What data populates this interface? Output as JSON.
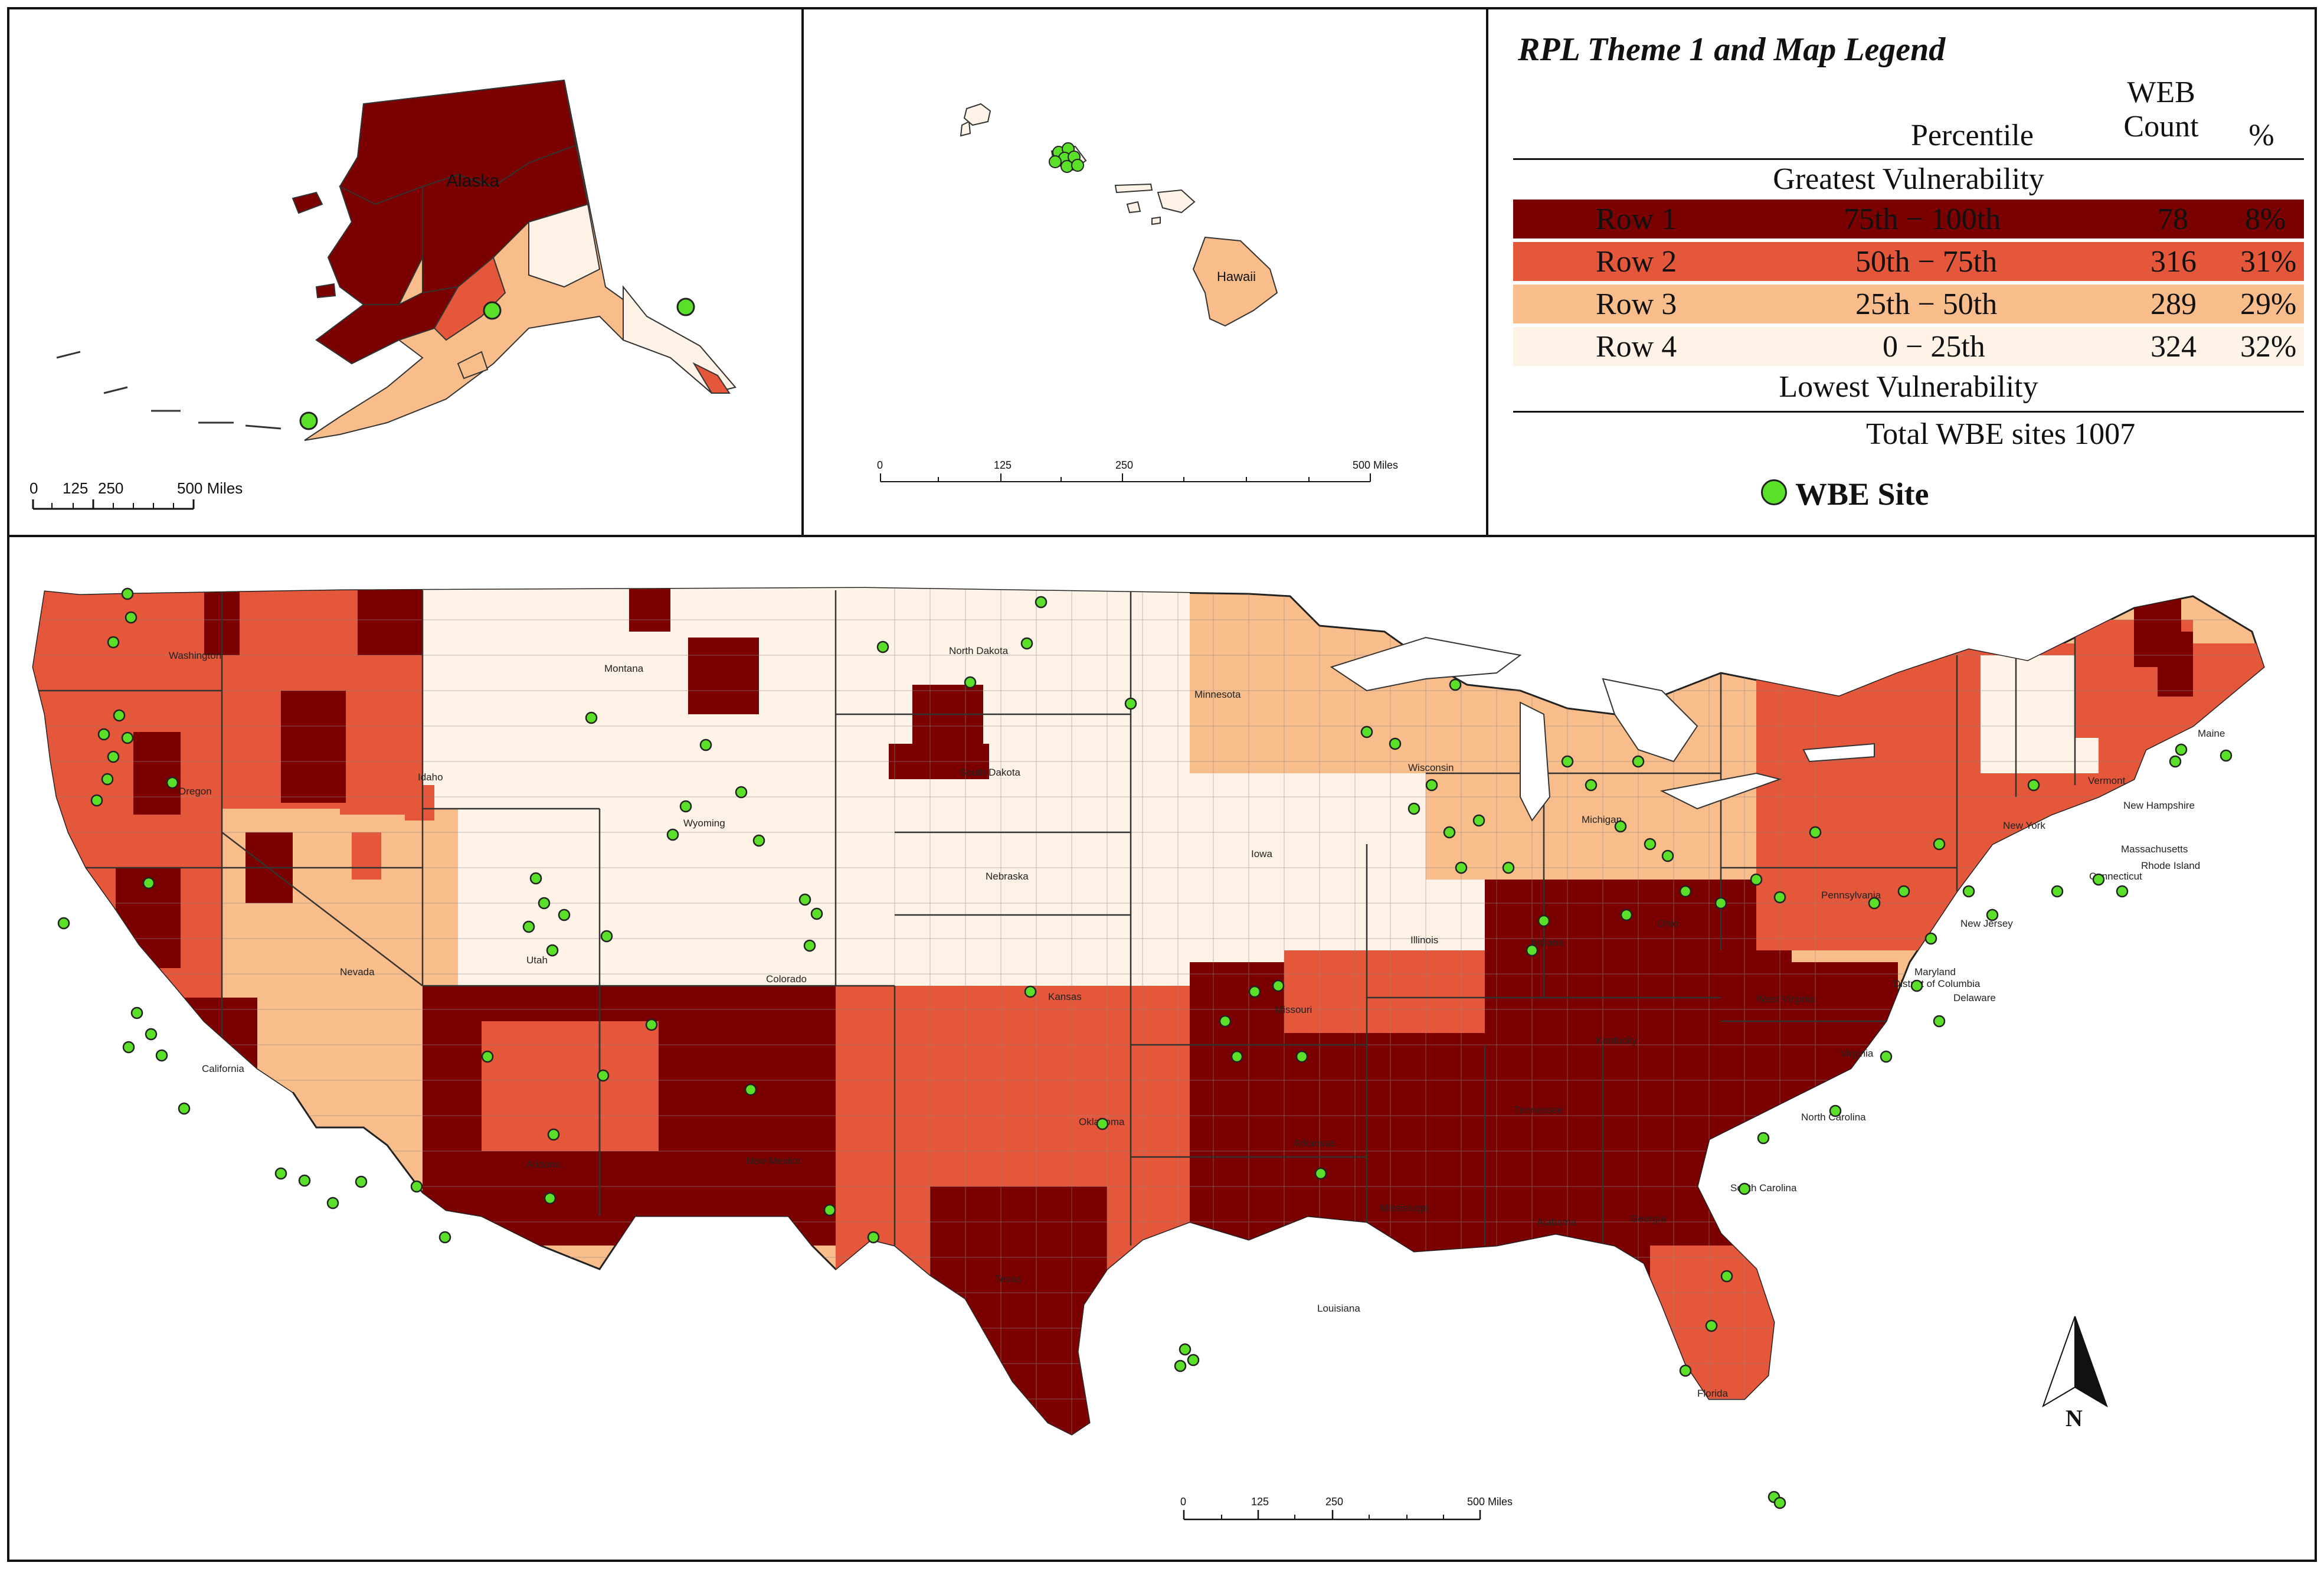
{
  "alaska_inset": {
    "label": "Alaska",
    "scale": {
      "ticks": [
        "0",
        "125",
        "250"
      ],
      "end": "500 Miles"
    }
  },
  "hawaii_inset": {
    "label": "Hawaii",
    "scale": {
      "ticks": [
        "0",
        "125",
        "250"
      ],
      "end": "500 Miles"
    }
  },
  "legend": {
    "title": "RPL Theme 1 and Map Legend",
    "col_percentile": "Percentile",
    "col_count_line1": "WEB",
    "col_count_line2": "Count",
    "col_pct": "%",
    "top_label": "Greatest Vulnerability",
    "bottom_label": "Lowest Vulnerability",
    "rows": [
      {
        "name": "Row 1",
        "range": "75th − 100th",
        "count": "78",
        "pct": "8%",
        "color": "#7b0000"
      },
      {
        "name": "Row 2",
        "range": "50th − 75th",
        "count": "316",
        "pct": "31%",
        "color": "#e4573b"
      },
      {
        "name": "Row 3",
        "range": "25th − 50th",
        "count": "289",
        "pct": "29%",
        "color": "#f8bd8a"
      },
      {
        "name": "Row 4",
        "range": "0 − 25th",
        "count": "324",
        "pct": "32%",
        "color": "#fef3e6"
      }
    ],
    "total": "Total WBE sites 1007",
    "site_label": "WBE Site",
    "site_color": "#5be02a"
  },
  "conus": {
    "scale": {
      "ticks": [
        "0",
        "125",
        "250"
      ],
      "end": "500 Miles"
    },
    "north_label": "N",
    "state_labels": [
      "Washington",
      "Montana",
      "North Dakota",
      "Minnesota",
      "Oregon",
      "Idaho",
      "South Dakota",
      "Wyoming",
      "Wisconsin",
      "Michigan",
      "Vermont",
      "Maine",
      "New Hampshire",
      "New York",
      "Massachusetts",
      "Rhode Island",
      "Connecticut",
      "Iowa",
      "Nebraska",
      "Nevada",
      "Utah",
      "Colorado",
      "Illinois",
      "Indiana",
      "Ohio",
      "Pennsylvania",
      "New Jersey",
      "Maryland",
      "District of Columbia",
      "Delaware",
      "California",
      "Kansas",
      "Missouri",
      "Kentucky",
      "West Virginia",
      "Virginia",
      "Oklahoma",
      "Tennessee",
      "North Carolina",
      "Arizona",
      "New Mexico",
      "Arkansas",
      "South Carolina",
      "Mississippi",
      "Alabama",
      "Georgia",
      "Texas",
      "Louisiana",
      "Florida"
    ]
  }
}
